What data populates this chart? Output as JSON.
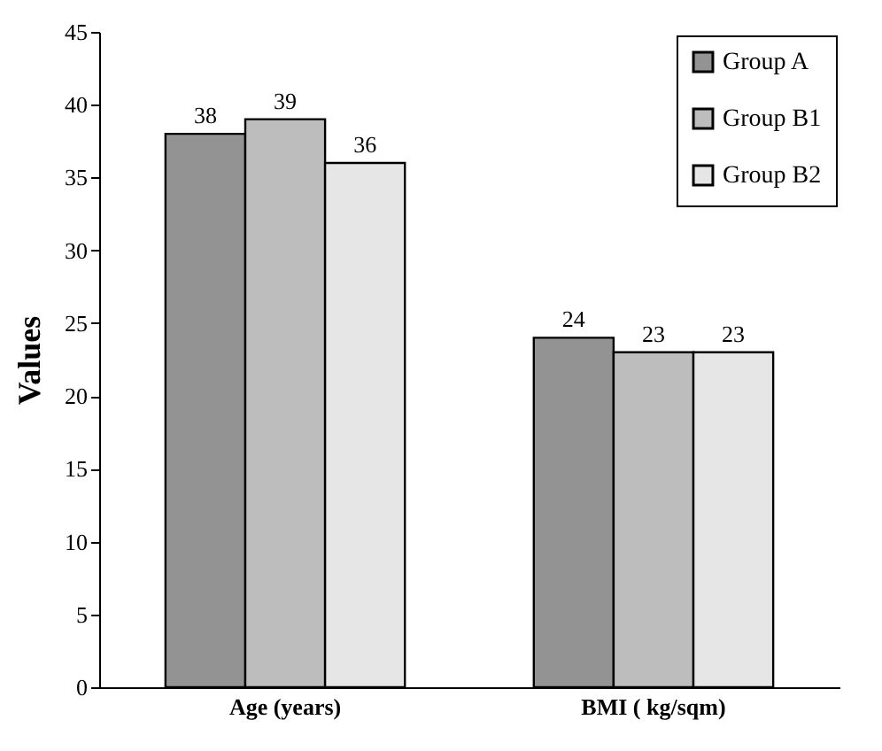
{
  "chart_data": {
    "type": "bar",
    "ylabel": "Values",
    "categories": [
      "Age (years)",
      "BMI ( kg/sqm)"
    ],
    "series": [
      {
        "name": "Group A",
        "color": "#939393",
        "values": [
          38,
          24
        ]
      },
      {
        "name": "Group B1",
        "color": "#bdbdbd",
        "values": [
          39,
          23
        ]
      },
      {
        "name": "Group B2",
        "color": "#e6e6e6",
        "values": [
          36,
          23
        ]
      }
    ],
    "ylim": [
      0,
      45
    ],
    "yticks": [
      0,
      5,
      10,
      15,
      20,
      25,
      30,
      35,
      40,
      45
    ],
    "data_labels": true,
    "legend": "top right",
    "grid": false
  }
}
